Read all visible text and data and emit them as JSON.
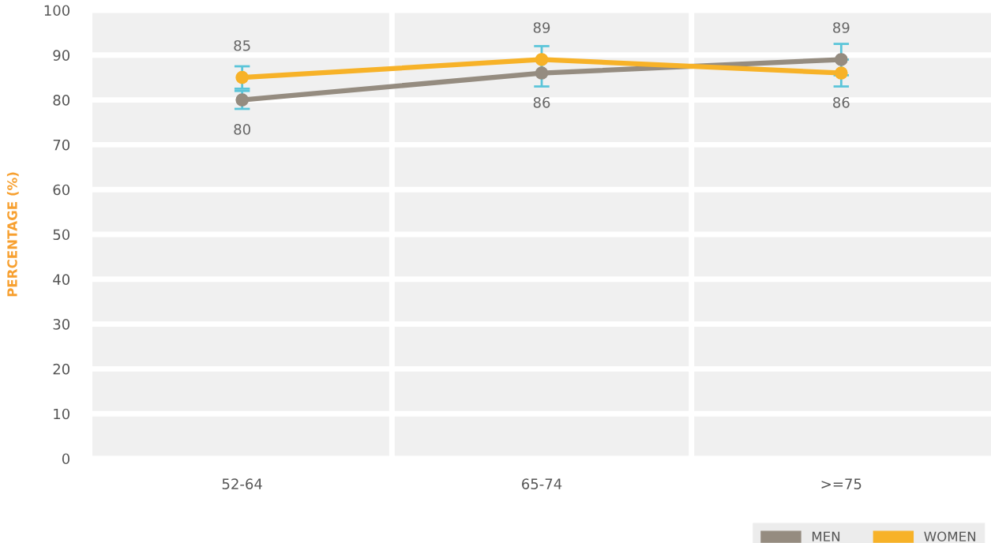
{
  "chart_data": {
    "type": "line",
    "ylabel": "PERCENTAGE (%)",
    "categories": [
      "52-64",
      "65-74",
      ">=75"
    ],
    "series": [
      {
        "name": "MEN",
        "color": "#958c80",
        "values": [
          80,
          86,
          89
        ],
        "errors": [
          2,
          3,
          3.5
        ]
      },
      {
        "name": "WOMEN",
        "color": "#f7b228",
        "values": [
          85,
          89,
          86
        ],
        "errors": [
          2.5,
          3,
          3
        ]
      }
    ],
    "ylim": [
      0,
      100
    ],
    "yticks": [
      0,
      10,
      20,
      30,
      40,
      50,
      60,
      70,
      80,
      90,
      100
    ],
    "grid": true,
    "legend": "bottom right",
    "marker": "circle",
    "line_style": "solid",
    "data_labels": true
  }
}
